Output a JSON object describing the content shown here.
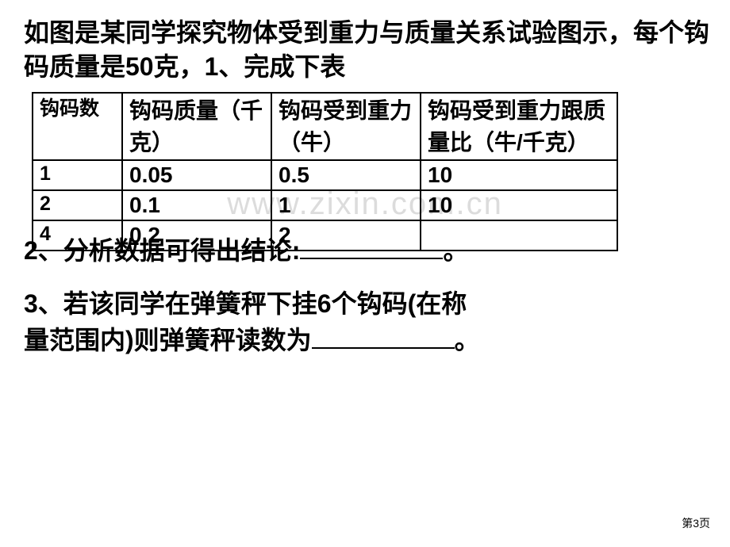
{
  "intro": "如图是某同学探究物体受到重力与质量关系试验图示，每个钩码质量是50克，1、完成下表",
  "watermark": "www.zixin.com.cn",
  "table": {
    "headers": {
      "c0": "钩码数",
      "c1": "钩码质量（千克）",
      "c2": "钩码受到重力（牛）",
      "c3": "钩码受到重力跟质量比（牛/千克）"
    },
    "rows": [
      {
        "c0": "1",
        "c1": "0.05",
        "c2": "0.5",
        "c3": "10"
      },
      {
        "c0": "2",
        "c1": "0.1",
        "c2": "1",
        "c3": "10"
      },
      {
        "c0": "4",
        "c1": "0.2",
        "c2": "2",
        "c3": ""
      }
    ]
  },
  "q2_prefix": "2、分析数据可得出结论:",
  "q2_suffix": "。",
  "q3_line1": "3、若该同学在弹簧秤下挂6个钩码(在称",
  "q3_line2_prefix": "量范围内)则弹簧秤读数为",
  "q3_suffix": "。",
  "pagenum": "第3页"
}
